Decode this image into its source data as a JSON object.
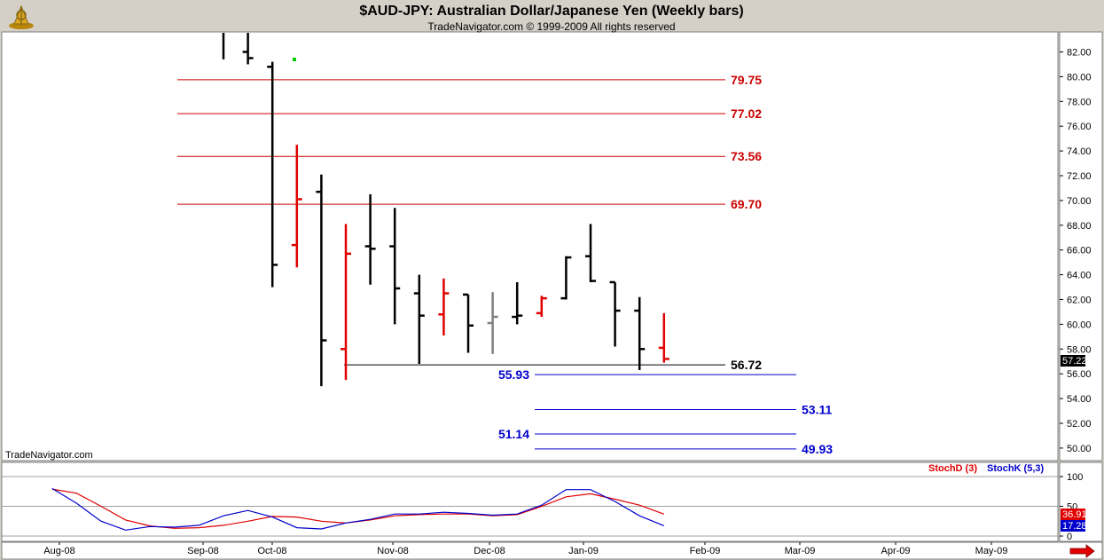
{
  "header": {
    "title": "$AUD-JPY:  Australian Dollar/Japanese Yen  (Weekly bars)",
    "subtitle": "TradeNavigator.com © 1999-2009 All rights reserved"
  },
  "watermark": "TradeNavigator.com",
  "colors": {
    "up_bar": "#000000",
    "down_bar": "#e00000",
    "neutral_bar": "#808080",
    "resistance": "#cc0000",
    "projection": "#0000cc",
    "support": "#000000",
    "stoch_d": "#e00000",
    "stoch_k": "#0000cc",
    "price_tag_bg": "#000000",
    "stoch_d_tag_bg": "#e00000",
    "stoch_k_tag_bg": "#0000cc"
  },
  "icons": {
    "logo": "ship-wheel-logo-icon",
    "scroll": "red-arrow-right-icon"
  },
  "chart_data": [
    {
      "type": "ohlc",
      "title": "$AUD-JPY:  Australian Dollar/Japanese Yen  (Weekly bars)",
      "ylim": [
        49,
        83
      ],
      "y_ticks": [
        "82.00",
        "80.00",
        "78.00",
        "76.00",
        "74.00",
        "72.00",
        "70.00",
        "68.00",
        "66.00",
        "64.00",
        "62.00",
        "60.00",
        "58.00",
        "56.00",
        "54.00",
        "52.00",
        "50.00"
      ],
      "x_tick_labels": [
        "Aug-08",
        "Sep-08",
        "Oct-08",
        "Nov-08",
        "Dec-08",
        "Jan-09",
        "Feb-09",
        "Mar-09",
        "Apr-09",
        "May-09"
      ],
      "last_price": "57.22",
      "bars": [
        {
          "week": 0,
          "open": 84.5,
          "high": 84.9,
          "low": 81.4,
          "close": 84.3,
          "color": "black"
        },
        {
          "week": 1,
          "open": 82.0,
          "high": 84.7,
          "low": 81.0,
          "close": 81.5,
          "color": "black"
        },
        {
          "week": 2,
          "open": 80.8,
          "high": 81.2,
          "low": 63.0,
          "close": 64.8,
          "color": "black"
        },
        {
          "week": 3,
          "open": 66.4,
          "high": 74.5,
          "low": 64.6,
          "close": 70.1,
          "color": "red"
        },
        {
          "week": 4,
          "open": 70.7,
          "high": 72.1,
          "low": 55.0,
          "close": 58.7,
          "color": "black"
        },
        {
          "week": 5,
          "open": 58.0,
          "high": 68.1,
          "low": 55.5,
          "close": 65.7,
          "color": "red"
        },
        {
          "week": 6,
          "open": 66.3,
          "high": 70.5,
          "low": 63.2,
          "close": 66.1,
          "color": "black"
        },
        {
          "week": 7,
          "open": 66.3,
          "high": 69.4,
          "low": 60.0,
          "close": 62.9,
          "color": "black"
        },
        {
          "week": 8,
          "open": 62.5,
          "high": 64.0,
          "low": 56.8,
          "close": 60.7,
          "color": "black"
        },
        {
          "week": 9,
          "open": 60.8,
          "high": 63.7,
          "low": 59.1,
          "close": 62.5,
          "color": "red"
        },
        {
          "week": 10,
          "open": 62.4,
          "high": 62.4,
          "low": 57.7,
          "close": 59.9,
          "color": "black"
        },
        {
          "week": 11,
          "open": 60.1,
          "high": 62.6,
          "low": 57.6,
          "close": 60.6,
          "color": "gray"
        },
        {
          "week": 12,
          "open": 60.6,
          "high": 63.4,
          "low": 60.0,
          "close": 60.7,
          "color": "black"
        },
        {
          "week": 13,
          "open": 60.9,
          "high": 62.3,
          "low": 60.6,
          "close": 62.1,
          "color": "red"
        },
        {
          "week": 14,
          "open": 62.1,
          "high": 65.5,
          "low": 62.0,
          "close": 65.4,
          "color": "black"
        },
        {
          "week": 15,
          "open": 65.5,
          "high": 68.1,
          "low": 63.4,
          "close": 63.5,
          "color": "black"
        },
        {
          "week": 16,
          "open": 63.4,
          "high": 63.4,
          "low": 58.2,
          "close": 61.1,
          "color": "black"
        },
        {
          "week": 17,
          "open": 61.1,
          "high": 62.2,
          "low": 56.3,
          "close": 58.0,
          "color": "black"
        },
        {
          "week": 18,
          "open": 58.1,
          "high": 60.9,
          "low": 56.9,
          "close": 57.2,
          "color": "red"
        }
      ],
      "levels": [
        {
          "value": 79.75,
          "label": "79.75",
          "kind": "resistance"
        },
        {
          "value": 77.02,
          "label": "77.02",
          "kind": "resistance"
        },
        {
          "value": 73.56,
          "label": "73.56",
          "kind": "resistance"
        },
        {
          "value": 69.7,
          "label": "69.70",
          "kind": "resistance"
        },
        {
          "value": 56.72,
          "label": "56.72",
          "kind": "support"
        },
        {
          "value": 55.93,
          "label": "55.93",
          "kind": "projection"
        },
        {
          "value": 53.11,
          "label": "53.11",
          "kind": "projection"
        },
        {
          "value": 51.14,
          "label": "51.14",
          "kind": "projection"
        },
        {
          "value": 49.93,
          "label": "49.93",
          "kind": "projection"
        }
      ]
    },
    {
      "type": "line",
      "ylim": [
        0,
        100
      ],
      "y_ticks": [
        "100",
        "50",
        "0"
      ],
      "legend": [
        "StochD (3)",
        "StochK (5,3)"
      ],
      "last_values": {
        "stoch_d": "36.91",
        "stoch_k": "17.28"
      },
      "x": [
        -7,
        -6,
        -5,
        -4,
        -3,
        -2,
        -1,
        0,
        1,
        2,
        3,
        4,
        5,
        6,
        7,
        8,
        9,
        10,
        11,
        12,
        13,
        14,
        15,
        16,
        17,
        18
      ],
      "series": [
        {
          "name": "StochD (3)",
          "values": [
            79,
            72,
            50,
            27,
            17,
            13,
            14,
            18,
            25,
            33,
            32,
            25,
            22,
            27,
            34,
            36,
            37,
            37,
            34,
            36,
            50,
            66,
            71,
            62,
            52,
            36.91
          ]
        },
        {
          "name": "StochK (5,3)",
          "values": [
            80,
            55,
            25,
            10,
            16,
            15,
            18,
            34,
            43,
            32,
            14,
            12,
            22,
            28,
            37,
            37,
            40,
            38,
            35,
            37,
            52,
            78,
            78,
            58,
            34,
            17.28
          ]
        }
      ]
    }
  ]
}
